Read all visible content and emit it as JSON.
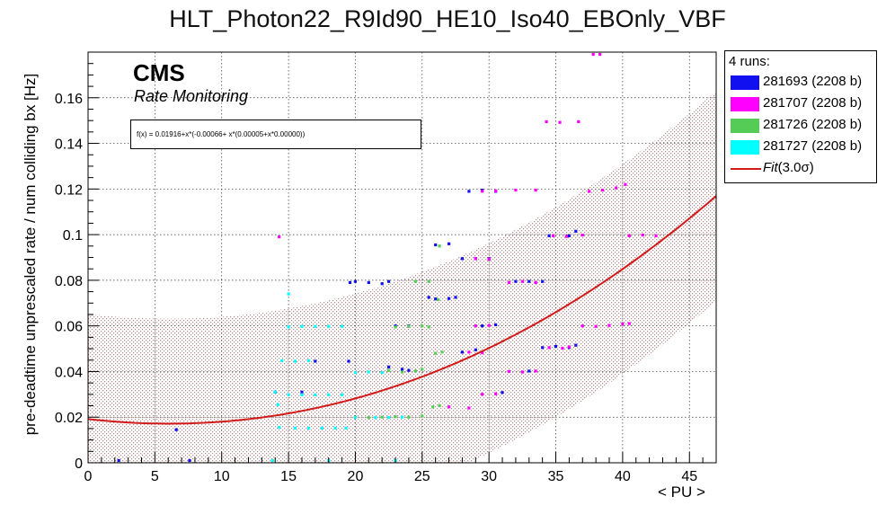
{
  "chart_data": {
    "type": "scatter",
    "title": "HLT_Photon22_R9Id90_HE10_Iso40_EBOnly_VBF",
    "xlabel": "< PU >",
    "ylabel": "pre-deadtime unprescaled rate / num colliding bx [Hz]",
    "xlim": [
      0,
      47
    ],
    "ylim": [
      0,
      0.18
    ],
    "x_ticks": [
      0,
      5,
      10,
      15,
      20,
      25,
      30,
      35,
      40,
      45
    ],
    "y_ticks": [
      0,
      0.02,
      0.04,
      0.06,
      0.08,
      0.1,
      0.12,
      0.14,
      0.16
    ],
    "x_tick_labels": [
      "0",
      "5",
      "10",
      "15",
      "20",
      "25",
      "30",
      "35",
      "40",
      "45"
    ],
    "y_tick_labels": [
      "0",
      "0.02",
      "0.04",
      "0.06",
      "0.08",
      "0.1",
      "0.12",
      "0.14",
      "0.16"
    ],
    "grid": true,
    "legend_position": "outside-right",
    "legend_header": "4 runs:",
    "series": [
      {
        "name": "281693 (2208 b)",
        "color": "#1010f0",
        "points": [
          [
            2.3,
            0.001
          ],
          [
            6.6,
            0.0145
          ],
          [
            7.6,
            0.001
          ],
          [
            14,
            0.031
          ],
          [
            16,
            0.031
          ],
          [
            17,
            0.0445
          ],
          [
            19.5,
            0.0445
          ],
          [
            19.6,
            0.079
          ],
          [
            20,
            0.0795
          ],
          [
            21,
            0.079
          ],
          [
            22,
            0.0785
          ],
          [
            22.5,
            0.0795
          ],
          [
            23,
            0.06
          ],
          [
            24,
            0.06
          ],
          [
            22.5,
            0.042
          ],
          [
            23.5,
            0.041
          ],
          [
            24,
            0.0405
          ],
          [
            25.5,
            0.0725
          ],
          [
            26,
            0.0718
          ],
          [
            27,
            0.072
          ],
          [
            27.5,
            0.0725
          ],
          [
            26,
            0.0955
          ],
          [
            27,
            0.096
          ],
          [
            28,
            0.0895
          ],
          [
            29,
            0.0895
          ],
          [
            30,
            0.0895
          ],
          [
            28,
            0.0485
          ],
          [
            29,
            0.0495
          ],
          [
            29.5,
            0.06
          ],
          [
            30.5,
            0.0605
          ],
          [
            28.5,
            0.119
          ],
          [
            29.5,
            0.1195
          ],
          [
            30.5,
            0.119
          ],
          [
            32,
            0.0795
          ],
          [
            33,
            0.0795
          ],
          [
            34,
            0.0795
          ],
          [
            31,
            0.0308
          ],
          [
            33,
            0.0402
          ],
          [
            34,
            0.0505
          ],
          [
            35,
            0.051
          ],
          [
            36,
            0.0505
          ],
          [
            36.5,
            0.0515
          ],
          [
            34.5,
            0.0995
          ],
          [
            36,
            0.0995
          ],
          [
            36.5,
            0.1015
          ]
        ]
      },
      {
        "name": "281707 (2208 b)",
        "color": "#ff00ff",
        "points": [
          [
            14.3,
            0.099
          ],
          [
            27,
            0.0245
          ],
          [
            28.5,
            0.024
          ],
          [
            29.5,
            0.03
          ],
          [
            30.5,
            0.0302
          ],
          [
            31.5,
            0.04
          ],
          [
            32.5,
            0.0398
          ],
          [
            33.5,
            0.0402
          ],
          [
            28.5,
            0.0485
          ],
          [
            29.5,
            0.0482
          ],
          [
            29,
            0.06
          ],
          [
            30,
            0.0602
          ],
          [
            31.5,
            0.079
          ],
          [
            32.5,
            0.0795
          ],
          [
            33.5,
            0.079
          ],
          [
            29,
            0.0895
          ],
          [
            30,
            0.0892
          ],
          [
            29.5,
            0.119
          ],
          [
            30.5,
            0.1192
          ],
          [
            32,
            0.1195
          ],
          [
            33.5,
            0.1195
          ],
          [
            34.5,
            0.0505
          ],
          [
            35.5,
            0.0502
          ],
          [
            36,
            0.0508
          ],
          [
            34.8,
            0.0995
          ],
          [
            35.8,
            0.0992
          ],
          [
            37,
            0.0998
          ],
          [
            37,
            0.06
          ],
          [
            38,
            0.0598
          ],
          [
            39,
            0.0602
          ],
          [
            40,
            0.0608
          ],
          [
            40.5,
            0.061
          ],
          [
            37.5,
            0.119
          ],
          [
            38.5,
            0.1195
          ],
          [
            39.5,
            0.1205
          ],
          [
            40.2,
            0.122
          ],
          [
            40.5,
            0.0995
          ],
          [
            41.5,
            0.0998
          ],
          [
            42.5,
            0.0995
          ],
          [
            34.3,
            0.1495
          ],
          [
            35.3,
            0.1492
          ],
          [
            36.7,
            0.1495
          ],
          [
            37.8,
            0.179
          ],
          [
            38.3,
            0.179
          ]
        ]
      },
      {
        "name": "281726 (2208 b)",
        "color": "#55cc55",
        "points": [
          [
            20,
            0.02
          ],
          [
            21,
            0.0198
          ],
          [
            22,
            0.02
          ],
          [
            23,
            0.0202
          ],
          [
            24,
            0.02
          ],
          [
            25,
            0.0205
          ],
          [
            22.5,
            0.0405
          ],
          [
            23.5,
            0.0398
          ],
          [
            24.5,
            0.0402
          ],
          [
            25,
            0.041
          ],
          [
            23,
            0.0595
          ],
          [
            24,
            0.0598
          ],
          [
            25,
            0.06
          ],
          [
            25.5,
            0.0595
          ],
          [
            24.5,
            0.0795
          ],
          [
            25.5,
            0.0795
          ],
          [
            25.8,
            0.0245
          ],
          [
            26.3,
            0.025
          ],
          [
            26,
            0.048
          ],
          [
            26.5,
            0.0485
          ],
          [
            26.2,
            0.0715
          ],
          [
            26.3,
            0.095
          ]
        ]
      },
      {
        "name": "281727 (2208 b)",
        "color": "#00ffff",
        "points": [
          [
            13.8,
            0.001
          ],
          [
            18,
            0.001
          ],
          [
            23,
            0.001
          ],
          [
            14.2,
            0.0255
          ],
          [
            14,
            0.031
          ],
          [
            15,
            0.0298
          ],
          [
            16,
            0.0298
          ],
          [
            17,
            0.0298
          ],
          [
            18,
            0.0298
          ],
          [
            19,
            0.0298
          ],
          [
            14.3,
            0.0155
          ],
          [
            15.5,
            0.0152
          ],
          [
            16.5,
            0.0152
          ],
          [
            17.5,
            0.0152
          ],
          [
            18.5,
            0.0152
          ],
          [
            19.3,
            0.0152
          ],
          [
            14.5,
            0.0448
          ],
          [
            15.5,
            0.0445
          ],
          [
            16.5,
            0.0448
          ],
          [
            15,
            0.0595
          ],
          [
            16,
            0.0598
          ],
          [
            17,
            0.0598
          ],
          [
            18,
            0.0598
          ],
          [
            19,
            0.0598
          ],
          [
            15,
            0.074
          ],
          [
            20,
            0.0395
          ],
          [
            21,
            0.0398
          ],
          [
            22,
            0.0395
          ],
          [
            20,
            0.0198
          ],
          [
            21.5,
            0.0198
          ],
          [
            22.5,
            0.0198
          ],
          [
            23.5,
            0.02
          ]
        ]
      }
    ],
    "fit": {
      "name": "Fit(3.0σ)",
      "legend_label_italic": "Fit",
      "legend_label_rest": "(3.0σ)",
      "color": "#d11a1a",
      "formula": "f(x) = 0.01916+x*(-0.00066+ x*(0.00005+x*0.00000))",
      "coefficients": [
        0.01916,
        -0.00066,
        5.36e-05,
        1e-07
      ],
      "band_sigma": 0.046
    },
    "annotations": {
      "cms": "CMS",
      "subtitle": "Rate Monitoring"
    }
  }
}
